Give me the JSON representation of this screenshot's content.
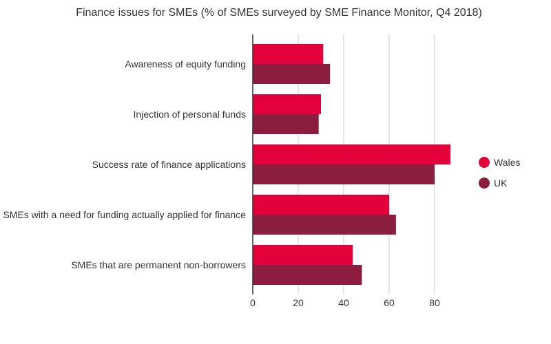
{
  "chart_data": {
    "type": "bar",
    "orientation": "horizontal",
    "title": "Finance issues for SMEs (% of SMEs surveyed by SME Finance Monitor, Q4 2018)",
    "xlabel": "",
    "ylabel": "",
    "categories": [
      "Awareness of equity funding",
      "Injection of personal funds",
      "Success rate of finance applications",
      "SMEs with a need for funding actually applied for finance",
      "SMEs that are permanent non-borrowers"
    ],
    "series": [
      {
        "name": "Wales",
        "color": "#e4003b",
        "values": [
          31,
          30,
          87,
          60,
          44
        ]
      },
      {
        "name": "UK",
        "color": "#8b1d3e",
        "values": [
          34,
          29,
          80,
          63,
          48
        ]
      }
    ],
    "xlim": [
      0,
      90
    ],
    "xticks": [
      "0",
      "20",
      "40",
      "60",
      "80"
    ],
    "grid": true,
    "legend_position": "right"
  }
}
